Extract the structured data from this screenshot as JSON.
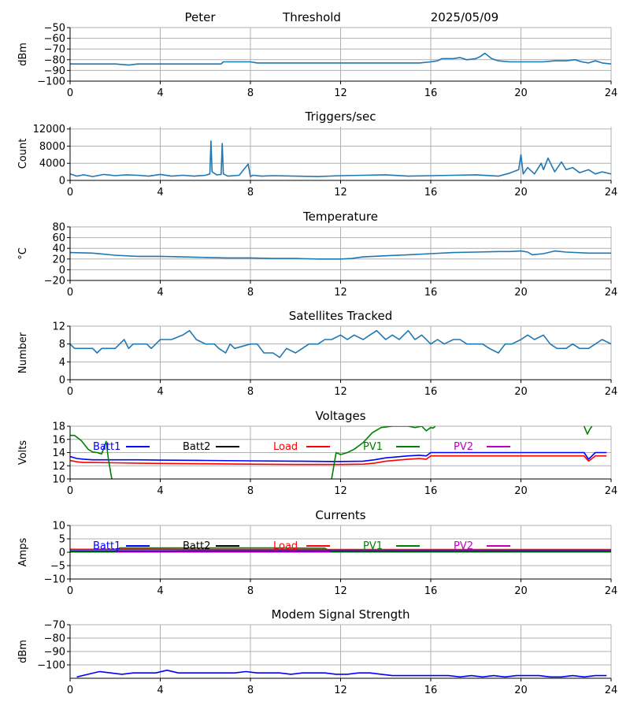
{
  "header": {
    "name": "Peter",
    "label": "Threshold",
    "date": "2025/05/09"
  },
  "colors": {
    "series_default": "#1f77b4",
    "grid": "#b0b0b0",
    "batt1": "#0000ff",
    "batt2": "#000000",
    "load": "#ff0000",
    "pv1": "#008000",
    "pv2": "#bf00bf"
  },
  "chart_data": [
    {
      "id": "threshold",
      "type": "line",
      "title": "",
      "xlabel": "",
      "ylabel": "dBm",
      "xlim": [
        0,
        24
      ],
      "ylim": [
        -100,
        -50
      ],
      "xticks": [
        "0",
        "4",
        "8",
        "12",
        "16",
        "20",
        "24"
      ],
      "yticks": [
        "-100",
        "-90",
        "-80",
        "-70",
        "-60",
        "-50"
      ],
      "yticks_display": [
        "−100",
        "−90",
        "−80",
        "−70",
        "−60",
        "−50"
      ],
      "grid": true,
      "series": [
        {
          "color": "#1f77b4",
          "x": [
            0,
            1,
            2,
            2.6,
            3,
            4,
            5,
            6,
            6.7,
            6.8,
            7,
            7.5,
            8,
            8.3,
            9,
            10,
            11,
            12,
            13,
            14,
            15,
            15.5,
            16,
            16.3,
            16.5,
            17,
            17.3,
            17.6,
            18,
            18.2,
            18.4,
            18.7,
            19,
            19.5,
            20,
            20.5,
            21,
            21.5,
            22,
            22.4,
            22.7,
            23,
            23.3,
            23.6,
            24
          ],
          "y": [
            -84,
            -84,
            -84,
            -85,
            -84,
            -84,
            -84,
            -84,
            -84,
            -82,
            -82,
            -82,
            -82,
            -83,
            -83,
            -83,
            -83,
            -83,
            -83,
            -83,
            -83,
            -83,
            -82,
            -81,
            -79,
            -79,
            -78,
            -80,
            -79,
            -77,
            -74,
            -79,
            -81,
            -82,
            -82,
            -82,
            -82,
            -81,
            -81,
            -80,
            -82,
            -83,
            -81,
            -83,
            -84
          ]
        }
      ]
    },
    {
      "id": "triggers",
      "type": "line",
      "title": "Triggers/sec",
      "xlabel": "",
      "ylabel": "Count",
      "xlim": [
        0,
        24
      ],
      "ylim": [
        0,
        12500
      ],
      "xticks": [
        "0",
        "4",
        "8",
        "12",
        "16",
        "20",
        "24"
      ],
      "yticks": [
        "0",
        "4000",
        "8000",
        "12000"
      ],
      "grid": true,
      "series": [
        {
          "color": "#1f77b4",
          "x": [
            0,
            0.3,
            0.6,
            1,
            1.5,
            2,
            2.5,
            3,
            3.5,
            4,
            4.5,
            5,
            5.5,
            6,
            6.2,
            6.25,
            6.3,
            6.5,
            6.7,
            6.75,
            6.8,
            7,
            7.5,
            7.9,
            8,
            8.1,
            8.5,
            9,
            10,
            11,
            12,
            13,
            14,
            15,
            16,
            17,
            18,
            19,
            19.5,
            19.9,
            20,
            20.1,
            20.3,
            20.6,
            20.9,
            21,
            21.2,
            21.5,
            21.8,
            22,
            22.3,
            22.6,
            23,
            23.3,
            23.6,
            24
          ],
          "y": [
            1500,
            1000,
            1300,
            900,
            1400,
            1100,
            1300,
            1200,
            1000,
            1400,
            1000,
            1200,
            1000,
            1200,
            1500,
            9200,
            2000,
            1300,
            1400,
            8600,
            1500,
            1000,
            1200,
            3800,
            900,
            1200,
            1000,
            1100,
            1000,
            900,
            1100,
            1200,
            1300,
            1000,
            1100,
            1200,
            1300,
            1000,
            1700,
            2500,
            6000,
            1500,
            3000,
            1500,
            4000,
            2500,
            5200,
            2000,
            4300,
            2500,
            3000,
            1800,
            2500,
            1500,
            2000,
            1500
          ]
        }
      ]
    },
    {
      "id": "temperature",
      "type": "line",
      "title": "Temperature",
      "xlabel": "",
      "ylabel": "°C",
      "xlim": [
        0,
        24
      ],
      "ylim": [
        -20,
        80
      ],
      "xticks": [
        "0",
        "4",
        "8",
        "12",
        "16",
        "20",
        "24"
      ],
      "yticks": [
        "-20",
        "0",
        "20",
        "40",
        "60",
        "80"
      ],
      "yticks_display": [
        "−20",
        "0",
        "20",
        "40",
        "60",
        "80"
      ],
      "grid": true,
      "series": [
        {
          "color": "#1f77b4",
          "x": [
            0,
            1,
            2,
            3,
            4,
            5,
            6,
            7,
            8,
            9,
            10,
            11,
            12,
            12.5,
            13,
            14,
            15,
            16,
            17,
            18,
            19,
            19.5,
            20,
            20.3,
            20.5,
            21,
            21.5,
            22,
            23,
            24
          ],
          "y": [
            32,
            31,
            27,
            25,
            25,
            24,
            23,
            22,
            22,
            21,
            21,
            20,
            20,
            21,
            24,
            26,
            28,
            30,
            32,
            33,
            34,
            34,
            35,
            33,
            28,
            30,
            35,
            33,
            31,
            31
          ]
        }
      ]
    },
    {
      "id": "satellites",
      "type": "line",
      "title": "Satellites Tracked",
      "xlabel": "",
      "ylabel": "Number",
      "xlim": [
        0,
        24
      ],
      "ylim": [
        0,
        12
      ],
      "xticks": [
        "0",
        "4",
        "8",
        "12",
        "16",
        "20",
        "24"
      ],
      "yticks": [
        "0",
        "4",
        "8",
        "12"
      ],
      "grid": true,
      "series": [
        {
          "color": "#1f77b4",
          "x": [
            0,
            0.2,
            0.4,
            1,
            1.2,
            1.4,
            2,
            2.2,
            2.4,
            2.6,
            2.8,
            3,
            3.4,
            3.6,
            3.8,
            4,
            4.5,
            5,
            5.3,
            5.6,
            6,
            6.4,
            6.6,
            6.9,
            7.1,
            7.3,
            8,
            8.3,
            8.6,
            9,
            9.3,
            9.6,
            10,
            10.3,
            10.6,
            11,
            11.3,
            11.6,
            12,
            12.3,
            12.6,
            13,
            13.3,
            13.6,
            14,
            14.3,
            14.6,
            15,
            15.3,
            15.6,
            16,
            16.3,
            16.6,
            17,
            17.3,
            17.6,
            18,
            18.3,
            18.6,
            19,
            19.3,
            19.6,
            20,
            20.3,
            20.6,
            21,
            21.3,
            21.6,
            22,
            22.3,
            22.6,
            23,
            23.3,
            23.6,
            24
          ],
          "y": [
            8,
            7,
            7,
            7,
            6,
            7,
            7,
            8,
            9,
            7,
            8,
            8,
            8,
            7,
            8,
            9,
            9,
            10,
            11,
            9,
            8,
            8,
            7,
            6,
            8,
            7,
            8,
            8,
            6,
            6,
            5,
            7,
            6,
            7,
            8,
            8,
            9,
            9,
            10,
            9,
            10,
            9,
            10,
            11,
            9,
            10,
            9,
            11,
            9,
            10,
            8,
            9,
            8,
            9,
            9,
            8,
            8,
            8,
            7,
            6,
            8,
            8,
            9,
            10,
            9,
            10,
            8,
            7,
            7,
            8,
            7,
            7,
            8,
            9,
            8
          ]
        }
      ]
    },
    {
      "id": "voltages",
      "type": "line",
      "title": "Voltages",
      "xlabel": "",
      "ylabel": "Volts",
      "xlim": [
        0,
        24
      ],
      "ylim": [
        10,
        18
      ],
      "xticks": [
        "0",
        "4",
        "8",
        "12",
        "16",
        "20",
        "24"
      ],
      "yticks": [
        "10",
        "12",
        "14",
        "16",
        "18"
      ],
      "grid": true,
      "legend": [
        "Batt1",
        "Batt2",
        "Load",
        "PV1",
        "PV2"
      ],
      "series": [
        {
          "name": "Batt1",
          "color": "#0000ff",
          "x": [
            0,
            0.3,
            0.6,
            1,
            2,
            3,
            4,
            6,
            8,
            10,
            11.5,
            12,
            13,
            13.5,
            14,
            15,
            15.5,
            15.8,
            16,
            16.5,
            17,
            18,
            19,
            20,
            21,
            22,
            22.6,
            22.8,
            23,
            23.3,
            23.8
          ],
          "y": [
            13.4,
            13.1,
            13,
            12.9,
            12.9,
            12.9,
            12.85,
            12.8,
            12.75,
            12.7,
            12.65,
            12.65,
            12.7,
            12.9,
            13.2,
            13.5,
            13.6,
            13.5,
            14,
            14,
            14,
            14,
            14,
            14,
            14,
            14,
            14,
            14,
            13,
            14,
            14
          ]
        },
        {
          "name": "Load",
          "color": "#ff0000",
          "x": [
            0,
            0.3,
            0.6,
            1,
            2,
            3,
            4,
            6,
            8,
            10,
            11.5,
            12,
            13,
            13.5,
            14,
            15,
            15.5,
            15.8,
            16,
            16.5,
            17,
            18,
            19,
            20,
            21,
            22,
            22.6,
            22.8,
            23,
            23.3,
            23.8
          ],
          "y": [
            12.8,
            12.6,
            12.5,
            12.5,
            12.45,
            12.4,
            12.35,
            12.3,
            12.25,
            12.2,
            12.2,
            12.2,
            12.25,
            12.4,
            12.7,
            13,
            13.1,
            13,
            13.5,
            13.5,
            13.5,
            13.5,
            13.5,
            13.5,
            13.5,
            13.5,
            13.5,
            13.5,
            12.7,
            13.5,
            13.5
          ]
        },
        {
          "name": "PV1",
          "color": "#008000",
          "x": [
            0,
            0.2,
            0.5,
            0.8,
            1,
            1.2,
            1.4,
            1.6,
            1.7,
            1.8,
            1.85
          ],
          "y": [
            16.6,
            16.6,
            15.8,
            14.5,
            14.1,
            14,
            13.8,
            15.7,
            13,
            11,
            10
          ]
        },
        {
          "name": "PV1",
          "color": "#008000",
          "x": [
            11.6,
            11.8,
            12,
            12.3,
            12.6,
            13,
            13.4,
            13.8,
            14.3,
            15,
            15.3,
            15.6,
            15.8,
            16,
            16.1,
            16.2
          ],
          "y": [
            10,
            14,
            13.7,
            14,
            14.5,
            15.5,
            17,
            17.8,
            18,
            18,
            17.8,
            18,
            17.3,
            17.8,
            17.7,
            18
          ]
        },
        {
          "name": "PV1",
          "color": "#008000",
          "x": [
            22.8,
            22.95,
            23.05,
            23.15
          ],
          "y": [
            18,
            16.8,
            17.5,
            18
          ]
        }
      ]
    },
    {
      "id": "currents",
      "type": "line",
      "title": "Currents",
      "xlabel": "",
      "ylabel": "Amps",
      "xlim": [
        0,
        24
      ],
      "ylim": [
        -10,
        10
      ],
      "xticks": [
        "0",
        "4",
        "8",
        "12",
        "16",
        "20",
        "24"
      ],
      "yticks": [
        "-10",
        "-5",
        "0",
        "5",
        "10"
      ],
      "yticks_display": [
        "−10",
        "−5",
        "0",
        "5",
        "10"
      ],
      "grid": true,
      "legend": [
        "Batt1",
        "Batt2",
        "Load",
        "PV1",
        "PV2"
      ],
      "series": [
        {
          "name": "PV2",
          "color": "#bf00bf",
          "x": [
            0,
            24
          ],
          "y": [
            0.1,
            0.1
          ]
        },
        {
          "name": "PV1",
          "color": "#008000",
          "x": [
            0,
            2,
            2.2,
            3,
            6,
            9,
            11.3,
            11.6,
            12,
            24
          ],
          "y": [
            0.2,
            0.2,
            1.6,
            1.6,
            1.6,
            1.6,
            1.5,
            0.2,
            0.2,
            0.2
          ]
        },
        {
          "name": "Batt1",
          "color": "#0000ff",
          "x": [
            0,
            24
          ],
          "y": [
            0.5,
            0.5
          ]
        },
        {
          "name": "Load",
          "color": "#ff0000",
          "x": [
            0,
            2,
            4,
            6,
            8,
            10,
            12,
            14,
            16,
            18,
            20,
            22,
            24
          ],
          "y": [
            1.1,
            1.1,
            1.1,
            1.0,
            1.0,
            1.0,
            1.0,
            1.0,
            1.0,
            1.0,
            1.0,
            1.0,
            1.0
          ]
        }
      ]
    },
    {
      "id": "modem",
      "type": "line",
      "title": "Modem Signal Strength",
      "xlabel": "",
      "ylabel": "dBm",
      "xlim": [
        0,
        24
      ],
      "ylim": [
        -110,
        -70
      ],
      "xticks": [
        "0",
        "4",
        "8",
        "12",
        "16",
        "20",
        "24"
      ],
      "yticks": [
        "-100",
        "-90",
        "-80",
        "-70"
      ],
      "yticks_display": [
        "−100",
        "−90",
        "−80",
        "−70"
      ],
      "grid": true,
      "series": [
        {
          "color": "#0000ff",
          "x": [
            0.3,
            0.8,
            1.3,
            1.8,
            2.3,
            2.8,
            3.3,
            3.8,
            4.3,
            4.8,
            5.3,
            5.8,
            6.3,
            6.8,
            7.3,
            7.8,
            8.3,
            8.8,
            9.3,
            9.8,
            10.3,
            10.8,
            11.3,
            11.8,
            12.3,
            12.8,
            13.3,
            13.8,
            14.3,
            14.8,
            15.3,
            15.8,
            16.3,
            16.8,
            17.3,
            17.8,
            18.3,
            18.8,
            19.3,
            19.8,
            20.3,
            20.8,
            21.3,
            21.8,
            22.3,
            22.8,
            23.3,
            23.8
          ],
          "y": [
            -109,
            -107,
            -105,
            -106,
            -107,
            -106,
            -106,
            -106,
            -104,
            -106,
            -106,
            -106,
            -106,
            -106,
            -106,
            -105,
            -106,
            -106,
            -106,
            -107,
            -106,
            -106,
            -106,
            -107,
            -107,
            -106,
            -106,
            -107,
            -108,
            -108,
            -108,
            -108,
            -108,
            -108,
            -109,
            -108,
            -109,
            -108,
            -109,
            -108,
            -108,
            -108,
            -109,
            -109,
            -108,
            -109,
            -108,
            -108
          ]
        }
      ]
    }
  ]
}
